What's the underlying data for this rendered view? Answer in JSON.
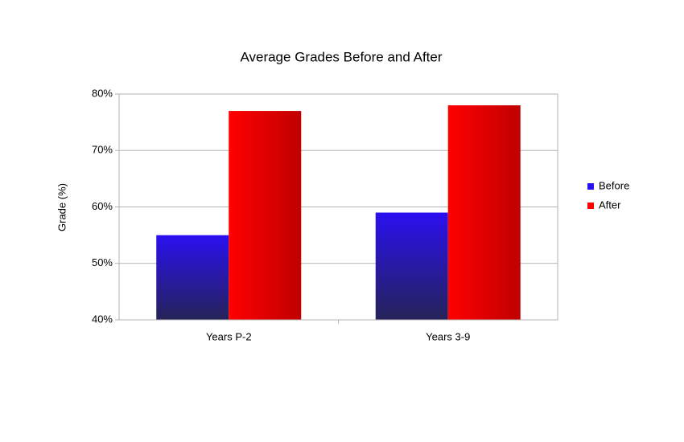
{
  "chart_data": {
    "type": "bar",
    "title": "Average Grades Before and After",
    "y_label": "Grade (%)",
    "categories": [
      "Years P-2",
      "Years 3-9"
    ],
    "series": [
      {
        "name": "Before",
        "color": "#2a10f0",
        "values": [
          55,
          59
        ]
      },
      {
        "name": "After",
        "color": "#ff0000",
        "values": [
          77,
          78
        ]
      }
    ],
    "ylim": [
      40,
      80
    ],
    "yticks": [
      {
        "value": 40,
        "label": "40%"
      },
      {
        "value": 50,
        "label": "50%"
      },
      {
        "value": 60,
        "label": "60%"
      },
      {
        "value": 70,
        "label": "70%"
      },
      {
        "value": 80,
        "label": "80%"
      }
    ],
    "grid": true,
    "legend": "right"
  }
}
